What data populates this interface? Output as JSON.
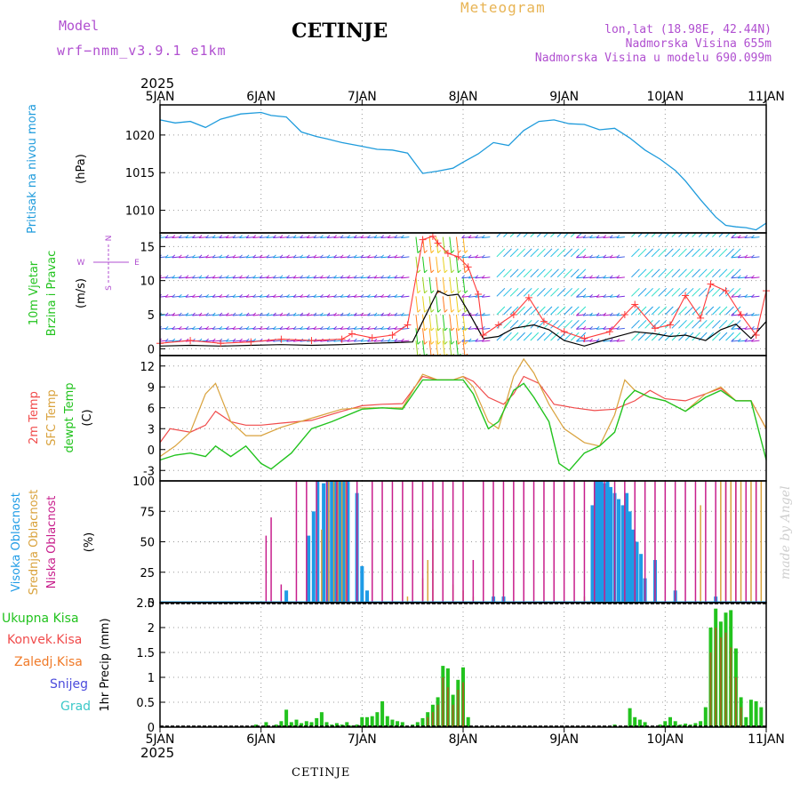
{
  "header": {
    "model_label": "Model",
    "model_run": "wrf−nmm_v3.9.1 e1km",
    "station": "CETINJE",
    "meteogram_label": "Meteogram",
    "lonlat": "lon,lat (18.98E, 42.44N)",
    "altitude": "Nadmorska Visina 655m",
    "altitude_model": "Nadmorska Visina u modelu 690.099m",
    "year": "2025",
    "footer_station": "CETINJE",
    "credit": "made by Angel"
  },
  "colors": {
    "pressure": "#1e9bdc",
    "wind_speed": "#000000",
    "gust": "#ff3b3b",
    "temp2m": "#f04b4b",
    "sfc_temp": "#d9a23c",
    "dewpoint": "#22c31e",
    "high_cloud": "#1e9be6",
    "mid_cloud": "#d9a23c",
    "low_cloud": "#c81e8c",
    "total_precip": "#22c31e",
    "conv_precip": "#f04b4b",
    "frozen_precip": "#f07a28",
    "snow": "#4b4bdc",
    "hail": "#3cc8c8"
  },
  "chart_data": [
    {
      "type": "line",
      "x_tick_labels": [
        "5JAN",
        "6JAN",
        "7JAN",
        "8JAN",
        "9JAN",
        "10JAN",
        "11JAN"
      ],
      "ylabel": "Pritisak na nivou mora",
      "unit": "(hPa)",
      "ylim": [
        1007,
        1024
      ],
      "yticks": [
        1010,
        1015,
        1020
      ],
      "grid": true,
      "series": [
        {
          "name": "Pritisak na nivou mora",
          "x": [
            0,
            0.15,
            0.3,
            0.45,
            0.6,
            0.8,
            1.0,
            1.1,
            1.25,
            1.4,
            1.55,
            1.65,
            1.8,
            2.0,
            2.15,
            2.3,
            2.45,
            2.6,
            2.75,
            2.9,
            3.0,
            3.15,
            3.3,
            3.45,
            3.6,
            3.75,
            3.9,
            4.05,
            4.2,
            4.35,
            4.5,
            4.65,
            4.8,
            4.95,
            5.1,
            5.2,
            5.35,
            5.5,
            5.6,
            5.7,
            5.8,
            5.9,
            6.0
          ],
          "values": [
            1022.0,
            1021.6,
            1021.8,
            1021.0,
            1022.1,
            1022.8,
            1023.0,
            1022.6,
            1022.4,
            1020.4,
            1019.8,
            1019.5,
            1019.0,
            1018.5,
            1018.1,
            1018.0,
            1017.6,
            1014.9,
            1015.2,
            1015.6,
            1016.4,
            1017.5,
            1019.0,
            1018.6,
            1020.6,
            1021.8,
            1022.0,
            1021.5,
            1021.4,
            1020.7,
            1020.9,
            1019.6,
            1018.0,
            1016.8,
            1015.3,
            1013.9,
            1011.4,
            1009.1,
            1008.0,
            1007.8,
            1007.7,
            1007.4,
            1008.3
          ]
        }
      ]
    },
    {
      "type": "line",
      "x_tick_labels": [
        "5JAN",
        "6JAN",
        "7JAN",
        "8JAN",
        "9JAN",
        "10JAN",
        "11JAN"
      ],
      "ylabel": "10m Vjetar Brzina i Pravac",
      "unit": "(m/s)",
      "compass_labels": [
        "N",
        "W",
        "E",
        "S"
      ],
      "ylim": [
        -1,
        17
      ],
      "yticks": [
        0,
        5,
        10,
        15
      ],
      "grid": true,
      "barb_rows": [
        1.2,
        3.0,
        5.0,
        7.7,
        10.5,
        13.5,
        16.4
      ],
      "series": [
        {
          "name": "wind speed",
          "x": [
            0,
            0.3,
            0.6,
            0.9,
            1.2,
            1.5,
            1.8,
            2.1,
            2.35,
            2.5,
            2.6,
            2.75,
            2.85,
            2.95,
            3.05,
            3.2,
            3.35,
            3.5,
            3.7,
            3.85,
            4.0,
            4.2,
            4.45,
            4.7,
            4.9,
            5.05,
            5.2,
            5.4,
            5.55,
            5.7,
            5.85,
            6.0
          ],
          "values": [
            0.4,
            0.5,
            0.4,
            0.5,
            0.6,
            0.5,
            0.6,
            0.8,
            0.9,
            1.0,
            4.0,
            8.5,
            7.8,
            8.0,
            5.5,
            1.5,
            1.8,
            3.0,
            3.5,
            2.8,
            1.2,
            0.4,
            1.5,
            2.5,
            2.2,
            1.8,
            2.0,
            1.2,
            2.8,
            3.6,
            1.5,
            4.0
          ]
        },
        {
          "name": "gust",
          "x": [
            0,
            0.3,
            0.6,
            0.9,
            1.2,
            1.5,
            1.8,
            1.9,
            2.1,
            2.3,
            2.45,
            2.6,
            2.7,
            2.75,
            2.85,
            2.95,
            3.05,
            3.15,
            3.2,
            3.35,
            3.5,
            3.65,
            3.8,
            4.0,
            4.2,
            4.45,
            4.6,
            4.7,
            4.9,
            5.05,
            5.2,
            5.35,
            5.45,
            5.6,
            5.75,
            5.9,
            6.0
          ],
          "values": [
            0.8,
            1.2,
            0.8,
            1.0,
            1.4,
            1.2,
            1.4,
            2.2,
            1.6,
            2.0,
            3.5,
            16.0,
            16.5,
            15.5,
            14.0,
            13.5,
            12.0,
            8.0,
            2.0,
            3.5,
            5.0,
            7.5,
            4.0,
            2.5,
            1.5,
            2.5,
            5.0,
            6.5,
            3.0,
            3.5,
            7.8,
            4.5,
            9.5,
            8.5,
            5.0,
            2.0,
            8.5
          ]
        }
      ]
    },
    {
      "type": "line",
      "x_tick_labels": [
        "5JAN",
        "6JAN",
        "7JAN",
        "8JAN",
        "9JAN",
        "10JAN",
        "11JAN"
      ],
      "ylabel": "2m Temp / SFC Temp / dewpt Temp",
      "unit": "(C)",
      "ylim": [
        -4.5,
        13.5
      ],
      "yticks": [
        -3,
        0,
        3,
        6,
        9,
        12
      ],
      "grid": true,
      "series": [
        {
          "name": "2m Temp",
          "x": [
            0,
            0.1,
            0.3,
            0.45,
            0.55,
            0.7,
            0.85,
            1.0,
            1.2,
            1.5,
            1.8,
            2.0,
            2.2,
            2.4,
            2.6,
            2.75,
            2.9,
            3.0,
            3.1,
            3.25,
            3.4,
            3.5,
            3.6,
            3.75,
            3.9,
            4.1,
            4.3,
            4.5,
            4.7,
            4.85,
            5.0,
            5.2,
            5.4,
            5.55,
            5.7,
            5.85,
            6.0
          ],
          "values": [
            1.0,
            3.0,
            2.5,
            3.5,
            5.5,
            4.0,
            3.5,
            3.5,
            3.8,
            4.2,
            5.5,
            6.3,
            6.5,
            6.6,
            10.5,
            10.0,
            10.0,
            10.5,
            9.8,
            7.5,
            6.5,
            8.0,
            10.5,
            9.5,
            6.5,
            6.0,
            5.6,
            5.8,
            7.0,
            8.5,
            7.3,
            7.0,
            8.0,
            8.8,
            7.0,
            7.0,
            3.0
          ]
        },
        {
          "name": "SFC Temp",
          "x": [
            0,
            0.15,
            0.3,
            0.45,
            0.55,
            0.7,
            0.85,
            1.0,
            1.2,
            1.5,
            1.8,
            2.0,
            2.2,
            2.4,
            2.6,
            2.75,
            2.9,
            3.0,
            3.1,
            3.25,
            3.35,
            3.5,
            3.6,
            3.7,
            3.85,
            4.0,
            4.2,
            4.35,
            4.5,
            4.6,
            4.7,
            4.85,
            5.0,
            5.2,
            5.4,
            5.55,
            5.7,
            5.85,
            6.0
          ],
          "values": [
            -1.0,
            0.5,
            2.5,
            8.0,
            9.5,
            4.0,
            2.0,
            2.0,
            3.2,
            4.5,
            5.8,
            6.0,
            6.0,
            6.0,
            10.8,
            10.0,
            10.0,
            10.5,
            9.0,
            4.0,
            3.0,
            10.5,
            13.0,
            11.0,
            6.5,
            3.0,
            1.0,
            0.5,
            5.0,
            10.0,
            8.5,
            7.5,
            7.0,
            5.5,
            8.0,
            9.0,
            7.0,
            7.0,
            3.0
          ]
        },
        {
          "name": "dewpt Temp",
          "x": [
            0,
            0.15,
            0.3,
            0.45,
            0.55,
            0.7,
            0.85,
            1.0,
            1.1,
            1.3,
            1.5,
            1.7,
            2.0,
            2.2,
            2.4,
            2.6,
            2.75,
            2.9,
            3.0,
            3.1,
            3.25,
            3.35,
            3.5,
            3.6,
            3.7,
            3.85,
            3.95,
            4.05,
            4.2,
            4.35,
            4.5,
            4.6,
            4.7,
            4.85,
            5.0,
            5.2,
            5.4,
            5.55,
            5.7,
            5.85,
            6.0
          ],
          "values": [
            -1.5,
            -0.8,
            -0.5,
            -1.0,
            0.5,
            -1.0,
            0.5,
            -2.0,
            -2.8,
            -0.5,
            3.0,
            4.0,
            5.8,
            6.0,
            5.8,
            10.0,
            10.0,
            10.0,
            10.0,
            8.0,
            3.0,
            4.0,
            8.5,
            9.5,
            7.5,
            4.0,
            -2.0,
            -3.0,
            -0.5,
            0.5,
            2.5,
            7.0,
            8.5,
            7.5,
            7.0,
            5.5,
            7.5,
            8.5,
            7.0,
            7.0,
            -1.5
          ]
        }
      ]
    },
    {
      "type": "bar",
      "x_tick_labels": [
        "5JAN",
        "6JAN",
        "7JAN",
        "8JAN",
        "9JAN",
        "10JAN",
        "11JAN"
      ],
      "ylabel": "Visoka Oblacnost / Srednja Oblacnost / Niska Oblacnost",
      "unit": "(%)",
      "ylim": [
        0,
        100
      ],
      "yticks": [
        0,
        25,
        50,
        75,
        100
      ],
      "grid": true,
      "series": [
        {
          "name": "Visoka Oblacnost",
          "x": [
            1.25,
            1.47,
            1.52,
            1.56,
            1.62,
            1.66,
            1.7,
            1.74,
            1.78,
            1.82,
            1.86,
            1.95,
            2.0,
            2.05,
            3.3,
            3.4,
            4.28,
            4.31,
            4.34,
            4.37,
            4.4,
            4.43,
            4.46,
            4.5,
            4.54,
            4.58,
            4.62,
            4.65,
            4.68,
            4.72,
            4.76,
            4.8,
            4.9,
            5.1,
            5.5
          ],
          "values": [
            10,
            55,
            75,
            100,
            98,
            100,
            100,
            100,
            100,
            100,
            100,
            90,
            30,
            10,
            5,
            5,
            80,
            100,
            100,
            100,
            98,
            100,
            95,
            90,
            85,
            80,
            90,
            75,
            60,
            50,
            40,
            20,
            35,
            10,
            5
          ]
        },
        {
          "name": "Srednja Oblacnost",
          "x": [
            1.6,
            1.67,
            1.72,
            1.76,
            1.8,
            1.84,
            2.45,
            2.6,
            2.65,
            2.7,
            2.8,
            2.9,
            3.0,
            3.1,
            4.2,
            5.35,
            5.55,
            5.6,
            5.65,
            5.7,
            5.75,
            5.8,
            5.85,
            5.9,
            5.95
          ],
          "values": [
            60,
            100,
            100,
            100,
            100,
            100,
            5,
            20,
            35,
            60,
            45,
            15,
            10,
            5,
            5,
            80,
            100,
            100,
            100,
            100,
            100,
            100,
            100,
            100,
            100
          ]
        },
        {
          "name": "Niska Oblacnost",
          "x": [
            1.05,
            1.1,
            1.2,
            1.35,
            1.45,
            1.55,
            1.65,
            1.75,
            1.85,
            1.95,
            2.1,
            2.2,
            2.3,
            2.4,
            2.5,
            2.6,
            2.7,
            2.8,
            2.9,
            3.0,
            3.1,
            3.2,
            3.3,
            3.4,
            3.5,
            3.6,
            3.7,
            3.8,
            3.9,
            4.0,
            4.1,
            4.2,
            4.3,
            4.4,
            4.5,
            4.6,
            4.7,
            4.8,
            4.9,
            5.0,
            5.1,
            5.2,
            5.3,
            5.4,
            5.5,
            5.6,
            5.7,
            5.8,
            5.9
          ],
          "values": [
            55,
            70,
            15,
            100,
            100,
            100,
            100,
            100,
            100,
            100,
            100,
            100,
            100,
            100,
            100,
            100,
            100,
            100,
            100,
            100,
            35,
            100,
            100,
            100,
            100,
            100,
            100,
            100,
            100,
            100,
            100,
            100,
            100,
            100,
            100,
            100,
            100,
            100,
            100,
            100,
            100,
            100,
            100,
            100,
            100,
            100,
            100,
            100,
            100
          ]
        }
      ]
    },
    {
      "type": "bar",
      "x_tick_labels": [
        "5JAN",
        "6JAN",
        "7JAN",
        "8JAN",
        "9JAN",
        "10JAN",
        "11JAN"
      ],
      "ylabel": "1hr Precip (mm)",
      "legend": [
        "Ukupna Kisa",
        "Konvek.Kisa",
        "Zaledj.Kisa",
        "Snijeg",
        "Grad"
      ],
      "ylim": [
        0,
        2.5
      ],
      "yticks": [
        0,
        0.5,
        1,
        1.5,
        2,
        2.5
      ],
      "grid": true,
      "series": [
        {
          "name": "Ukupna Kisa",
          "x": [
            0.95,
            1.05,
            1.15,
            1.2,
            1.25,
            1.3,
            1.35,
            1.4,
            1.45,
            1.5,
            1.55,
            1.6,
            1.65,
            1.7,
            1.75,
            1.8,
            1.85,
            1.9,
            1.95,
            2.0,
            2.05,
            2.1,
            2.15,
            2.2,
            2.25,
            2.3,
            2.35,
            2.4,
            2.5,
            2.55,
            2.6,
            2.65,
            2.7,
            2.75,
            2.8,
            2.85,
            2.9,
            2.95,
            3.0,
            3.05,
            4.5,
            4.65,
            4.7,
            4.75,
            4.8,
            4.95,
            5.0,
            5.05,
            5.1,
            5.15,
            5.2,
            5.25,
            5.3,
            5.35,
            5.4,
            5.45,
            5.5,
            5.55,
            5.6,
            5.65,
            5.7,
            5.75,
            5.8,
            5.85,
            5.9,
            5.95
          ],
          "values": [
            0.05,
            0.1,
            0.05,
            0.12,
            0.35,
            0.1,
            0.15,
            0.08,
            0.12,
            0.1,
            0.18,
            0.3,
            0.1,
            0.05,
            0.08,
            0.05,
            0.1,
            0.03,
            0.05,
            0.2,
            0.2,
            0.22,
            0.3,
            0.52,
            0.22,
            0.15,
            0.12,
            0.1,
            0.05,
            0.1,
            0.18,
            0.3,
            0.45,
            0.6,
            1.23,
            1.18,
            0.65,
            0.95,
            1.2,
            0.2,
            0.05,
            0.38,
            0.2,
            0.15,
            0.1,
            0.05,
            0.12,
            0.2,
            0.12,
            0.05,
            0.07,
            0.05,
            0.08,
            0.12,
            0.4,
            2.0,
            2.38,
            2.12,
            2.3,
            2.35,
            1.58,
            0.6,
            0.2,
            0.55,
            0.52,
            0.4
          ]
        },
        {
          "name": "Konvek.Kisa",
          "x": [
            2.65,
            2.7,
            2.75,
            2.8,
            2.85,
            2.9,
            2.95,
            3.0,
            5.45,
            5.5,
            5.55,
            5.6,
            5.65,
            5.7,
            5.75
          ],
          "values": [
            0.2,
            0.3,
            0.45,
            1.0,
            0.8,
            0.45,
            0.75,
            0.9,
            1.5,
            2.0,
            1.8,
            1.9,
            1.6,
            1.0,
            0.4
          ]
        }
      ]
    }
  ],
  "panel_labels": {
    "pressure": {
      "line1": "Pritisak na nivou mora",
      "unit": "(hPa)"
    },
    "wind": {
      "line1": "10m Vjetar",
      "line2": "Brzina i Pravac",
      "unit": "(m/s)"
    },
    "temp": {
      "line1": "2m Temp",
      "line2": "SFC Temp",
      "line3": "dewpt Temp",
      "unit": "(C)"
    },
    "cloud": {
      "line1": "Visoka Oblacnost",
      "line2": "Srednja Oblacnost",
      "line3": "Niska Oblacnost",
      "unit": "(%)"
    },
    "precip": {
      "legend": [
        "Ukupna Kisa",
        "Konvek.Kisa",
        "Zaledj.Kisa",
        "Snijeg",
        "Grad"
      ],
      "unit": "1hr Precip (mm)"
    }
  }
}
